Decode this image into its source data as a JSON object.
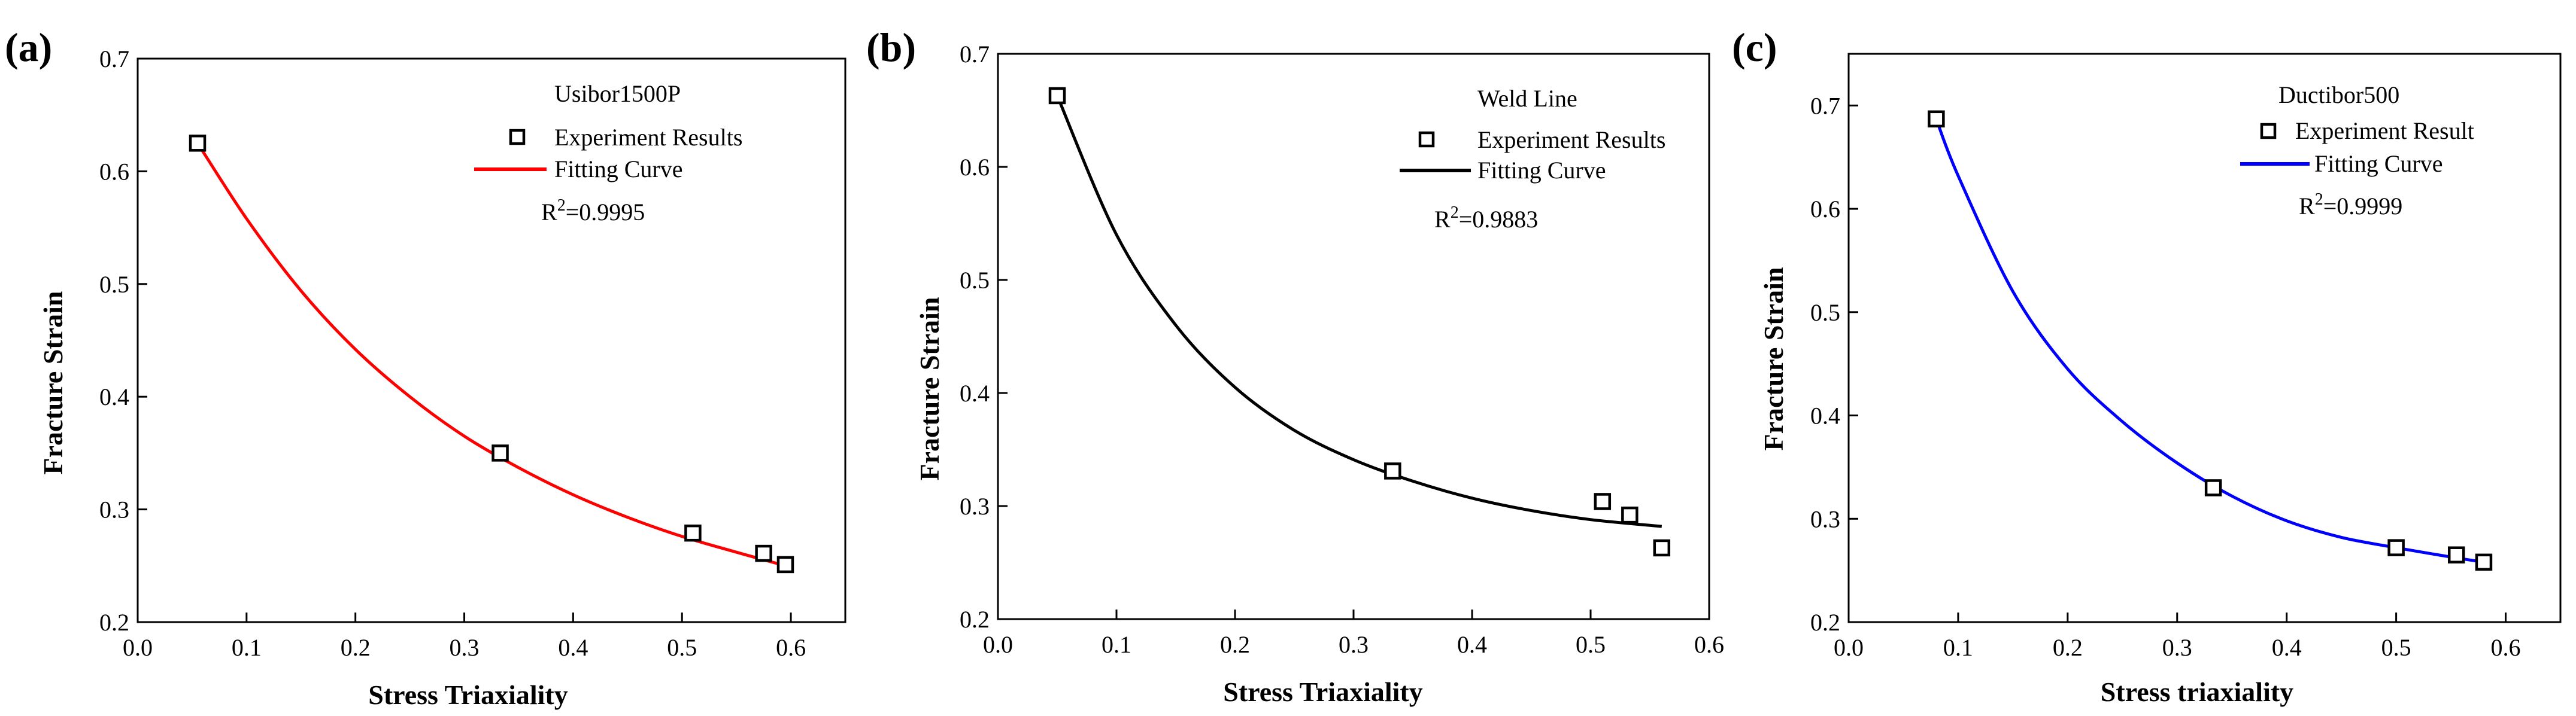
{
  "chart_data": [
    {
      "type": "scatter",
      "panel_label": "(a)",
      "title": "Usibor1500P",
      "xlabel": "Stress Triaxiality",
      "ylabel": "Fracture Strain",
      "xlim": [
        0.0,
        0.65
      ],
      "ylim": [
        0.2,
        0.7
      ],
      "xticks": [
        0.0,
        0.1,
        0.2,
        0.3,
        0.4,
        0.5,
        0.6
      ],
      "yticks": [
        0.2,
        0.3,
        0.4,
        0.5,
        0.6,
        0.7
      ],
      "xtick_labels": [
        "0.0",
        "0.1",
        "0.2",
        "0.3",
        "0.4",
        "0.5",
        "0.6"
      ],
      "ytick_labels": [
        "0.2",
        "0.3",
        "0.4",
        "0.5",
        "0.6",
        "0.7"
      ],
      "series": [
        {
          "name": "Experiment Results",
          "kind": "scatter",
          "x": [
            0.055,
            0.333,
            0.51,
            0.575,
            0.595
          ],
          "y": [
            0.625,
            0.35,
            0.279,
            0.261,
            0.251
          ]
        },
        {
          "name": "Fitting Curve",
          "kind": "line",
          "color": "#ff0000",
          "x": [
            0.055,
            0.1,
            0.15,
            0.2,
            0.25,
            0.3,
            0.35,
            0.4,
            0.45,
            0.5,
            0.55,
            0.595
          ],
          "y": [
            0.625,
            0.558,
            0.494,
            0.442,
            0.4,
            0.365,
            0.337,
            0.313,
            0.293,
            0.276,
            0.262,
            0.25
          ]
        }
      ],
      "legend": {
        "position": "top-right",
        "header": "Usibor1500P",
        "scatter_label": "Experiment Results",
        "line_label": "Fitting Curve",
        "r2_prefix": "R",
        "r2_sup": "2",
        "r2_value": "=0.9995"
      }
    },
    {
      "type": "scatter",
      "panel_label": "(b)",
      "title": "Weld Line",
      "xlabel": "Stress Triaxiality",
      "ylabel": "Fracture Strain",
      "xlim": [
        0.0,
        0.6
      ],
      "ylim": [
        0.2,
        0.7
      ],
      "xticks": [
        0.0,
        0.1,
        0.2,
        0.3,
        0.4,
        0.5,
        0.6
      ],
      "yticks": [
        0.2,
        0.3,
        0.4,
        0.5,
        0.6,
        0.7
      ],
      "xtick_labels": [
        "0.0",
        "0.1",
        "0.2",
        "0.3",
        "0.4",
        "0.5",
        "0.6"
      ],
      "ytick_labels": [
        "0.2",
        "0.3",
        "0.4",
        "0.5",
        "0.6",
        "0.7"
      ],
      "series": [
        {
          "name": "Experiment Results",
          "kind": "scatter",
          "x": [
            0.05,
            0.333,
            0.51,
            0.533,
            0.56
          ],
          "y": [
            0.663,
            0.331,
            0.304,
            0.292,
            0.263
          ]
        },
        {
          "name": "Fitting Curve",
          "kind": "line",
          "color": "#000000",
          "x": [
            0.05,
            0.1,
            0.15,
            0.2,
            0.25,
            0.3,
            0.35,
            0.4,
            0.45,
            0.5,
            0.56
          ],
          "y": [
            0.663,
            0.54,
            0.46,
            0.405,
            0.367,
            0.341,
            0.322,
            0.307,
            0.296,
            0.288,
            0.282
          ]
        }
      ],
      "legend": {
        "position": "top-right",
        "header": "Weld Line",
        "scatter_label": "Experiment Results",
        "line_label": "Fitting Curve",
        "r2_prefix": "R",
        "r2_sup": "2",
        "r2_value": "=0.9883"
      }
    },
    {
      "type": "scatter",
      "panel_label": "(c)",
      "title": "Ductibor500",
      "xlabel": "Stress triaxiality",
      "ylabel": "Fracture Strain",
      "xlim": [
        0.0,
        0.65
      ],
      "ylim": [
        0.2,
        0.75
      ],
      "xticks": [
        0.0,
        0.1,
        0.2,
        0.3,
        0.4,
        0.5,
        0.6
      ],
      "yticks": [
        0.2,
        0.3,
        0.4,
        0.5,
        0.6,
        0.7
      ],
      "xtick_labels": [
        "0.0",
        "0.1",
        "0.2",
        "0.3",
        "0.4",
        "0.5",
        "0.6"
      ],
      "ytick_labels": [
        "0.2",
        "0.3",
        "0.4",
        "0.5",
        "0.6",
        "0.7"
      ],
      "series": [
        {
          "name": "Experiment Result",
          "kind": "scatter",
          "x": [
            0.08,
            0.333,
            0.5,
            0.555,
            0.58
          ],
          "y": [
            0.687,
            0.33,
            0.272,
            0.265,
            0.258
          ]
        },
        {
          "name": "Fitting Curve",
          "kind": "line",
          "color": "#0000ff",
          "x": [
            0.08,
            0.1,
            0.15,
            0.2,
            0.25,
            0.3,
            0.35,
            0.4,
            0.45,
            0.5,
            0.55,
            0.58
          ],
          "y": [
            0.687,
            0.632,
            0.52,
            0.445,
            0.394,
            0.354,
            0.322,
            0.298,
            0.282,
            0.272,
            0.263,
            0.258
          ]
        }
      ],
      "legend": {
        "position": "top-right",
        "header": "Ductibor500",
        "scatter_label": "Experiment Result",
        "line_label": "Fitting Curve",
        "r2_prefix": "R",
        "r2_sup": "2",
        "r2_value": "=0.9999"
      }
    }
  ]
}
